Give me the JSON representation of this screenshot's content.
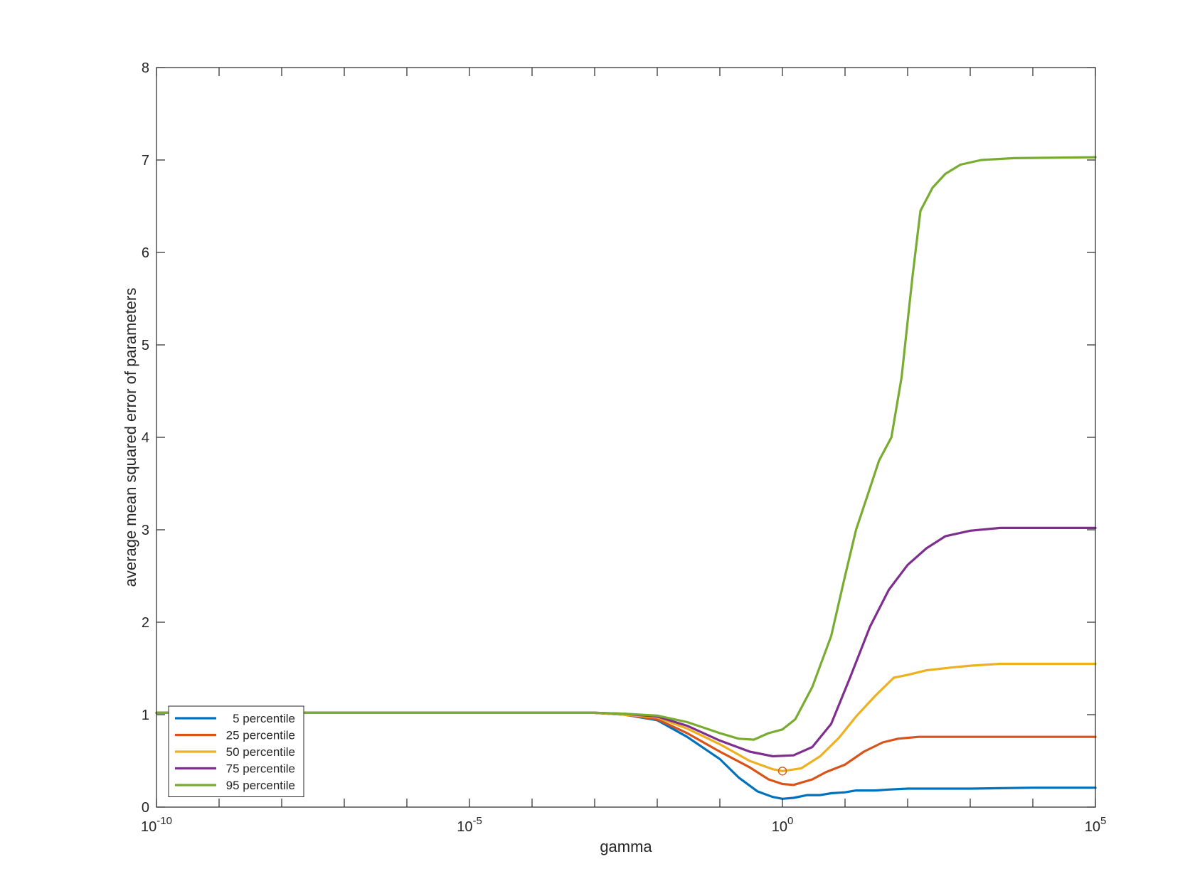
{
  "chart_data": {
    "type": "line",
    "xlabel": "gamma",
    "ylabel": "average mean squared error of parameters",
    "x_scale": "log",
    "xlim": [
      1e-10,
      100000
    ],
    "ylim": [
      0,
      8
    ],
    "x_ticks": [
      {
        "base": "10",
        "exp": "-10",
        "value": 1e-10
      },
      {
        "base": "10",
        "exp": "-5",
        "value": 1e-05
      },
      {
        "base": "10",
        "exp": "0",
        "value": 1
      },
      {
        "base": "10",
        "exp": "5",
        "value": 100000
      }
    ],
    "y_ticks": [
      "0",
      "1",
      "2",
      "3",
      "4",
      "5",
      "6",
      "7",
      "8"
    ],
    "grid": false,
    "box": true,
    "legend_position": "bottom-left",
    "series": [
      {
        "name": "5 percentile",
        "color": "#0072BD",
        "points": [
          [
            1e-10,
            1.02
          ],
          [
            0.001,
            1.02
          ],
          [
            0.003,
            1.0
          ],
          [
            0.01,
            0.94
          ],
          [
            0.03,
            0.76
          ],
          [
            0.1,
            0.52
          ],
          [
            0.2,
            0.32
          ],
          [
            0.4,
            0.17
          ],
          [
            0.7,
            0.11
          ],
          [
            1.0,
            0.09
          ],
          [
            1.5,
            0.1
          ],
          [
            2.5,
            0.13
          ],
          [
            4,
            0.13
          ],
          [
            6,
            0.15
          ],
          [
            10,
            0.16
          ],
          [
            15,
            0.18
          ],
          [
            30,
            0.18
          ],
          [
            50,
            0.19
          ],
          [
            100,
            0.2
          ],
          [
            1000,
            0.2
          ],
          [
            10000,
            0.21
          ],
          [
            100000,
            0.21
          ]
        ]
      },
      {
        "name": "25 percentile",
        "color": "#D95319",
        "points": [
          [
            1e-10,
            1.02
          ],
          [
            0.001,
            1.02
          ],
          [
            0.003,
            1.0
          ],
          [
            0.01,
            0.95
          ],
          [
            0.03,
            0.8
          ],
          [
            0.1,
            0.6
          ],
          [
            0.3,
            0.43
          ],
          [
            0.6,
            0.3
          ],
          [
            1.0,
            0.25
          ],
          [
            1.5,
            0.24
          ],
          [
            3,
            0.3
          ],
          [
            5,
            0.38
          ],
          [
            10,
            0.46
          ],
          [
            20,
            0.6
          ],
          [
            40,
            0.7
          ],
          [
            70,
            0.74
          ],
          [
            150,
            0.76
          ],
          [
            1000,
            0.76
          ],
          [
            100000,
            0.76
          ]
        ]
      },
      {
        "name": "50 percentile",
        "color": "#EDB120",
        "points": [
          [
            1e-10,
            1.02
          ],
          [
            0.001,
            1.02
          ],
          [
            0.003,
            1.0
          ],
          [
            0.01,
            0.97
          ],
          [
            0.03,
            0.85
          ],
          [
            0.1,
            0.68
          ],
          [
            0.3,
            0.5
          ],
          [
            0.7,
            0.41
          ],
          [
            1.0,
            0.39
          ],
          [
            2,
            0.42
          ],
          [
            4,
            0.55
          ],
          [
            8,
            0.75
          ],
          [
            15,
            0.98
          ],
          [
            30,
            1.2
          ],
          [
            60,
            1.4
          ],
          [
            100,
            1.43
          ],
          [
            200,
            1.48
          ],
          [
            500,
            1.51
          ],
          [
            1000,
            1.53
          ],
          [
            3000,
            1.55
          ],
          [
            100000,
            1.55
          ]
        ]
      },
      {
        "name": "75 percentile",
        "color": "#7E2F8E",
        "points": [
          [
            1e-10,
            1.02
          ],
          [
            0.001,
            1.02
          ],
          [
            0.003,
            1.01
          ],
          [
            0.01,
            0.98
          ],
          [
            0.03,
            0.88
          ],
          [
            0.1,
            0.72
          ],
          [
            0.3,
            0.6
          ],
          [
            0.7,
            0.55
          ],
          [
            1.5,
            0.56
          ],
          [
            3,
            0.65
          ],
          [
            6,
            0.9
          ],
          [
            12,
            1.4
          ],
          [
            25,
            1.95
          ],
          [
            50,
            2.35
          ],
          [
            100,
            2.62
          ],
          [
            200,
            2.8
          ],
          [
            400,
            2.93
          ],
          [
            1000,
            2.99
          ],
          [
            3000,
            3.02
          ],
          [
            100000,
            3.02
          ]
        ]
      },
      {
        "name": "95 percentile",
        "color": "#77AC30",
        "points": [
          [
            1e-10,
            1.02
          ],
          [
            0.001,
            1.02
          ],
          [
            0.003,
            1.01
          ],
          [
            0.01,
            0.99
          ],
          [
            0.03,
            0.92
          ],
          [
            0.1,
            0.8
          ],
          [
            0.2,
            0.74
          ],
          [
            0.35,
            0.73
          ],
          [
            0.6,
            0.8
          ],
          [
            1.0,
            0.84
          ],
          [
            1.6,
            0.95
          ],
          [
            3,
            1.3
          ],
          [
            6,
            1.85
          ],
          [
            10,
            2.5
          ],
          [
            15,
            3.0
          ],
          [
            25,
            3.45
          ],
          [
            35,
            3.75
          ],
          [
            55,
            4.0
          ],
          [
            80,
            4.65
          ],
          [
            120,
            5.75
          ],
          [
            160,
            6.45
          ],
          [
            250,
            6.7
          ],
          [
            400,
            6.85
          ],
          [
            700,
            6.95
          ],
          [
            1500,
            7.0
          ],
          [
            5000,
            7.02
          ],
          [
            100000,
            7.03
          ]
        ]
      }
    ],
    "annotations": [
      {
        "shape": "circle-marker",
        "x": 1.0,
        "y": 0.39,
        "color": "#D95319"
      }
    ]
  }
}
